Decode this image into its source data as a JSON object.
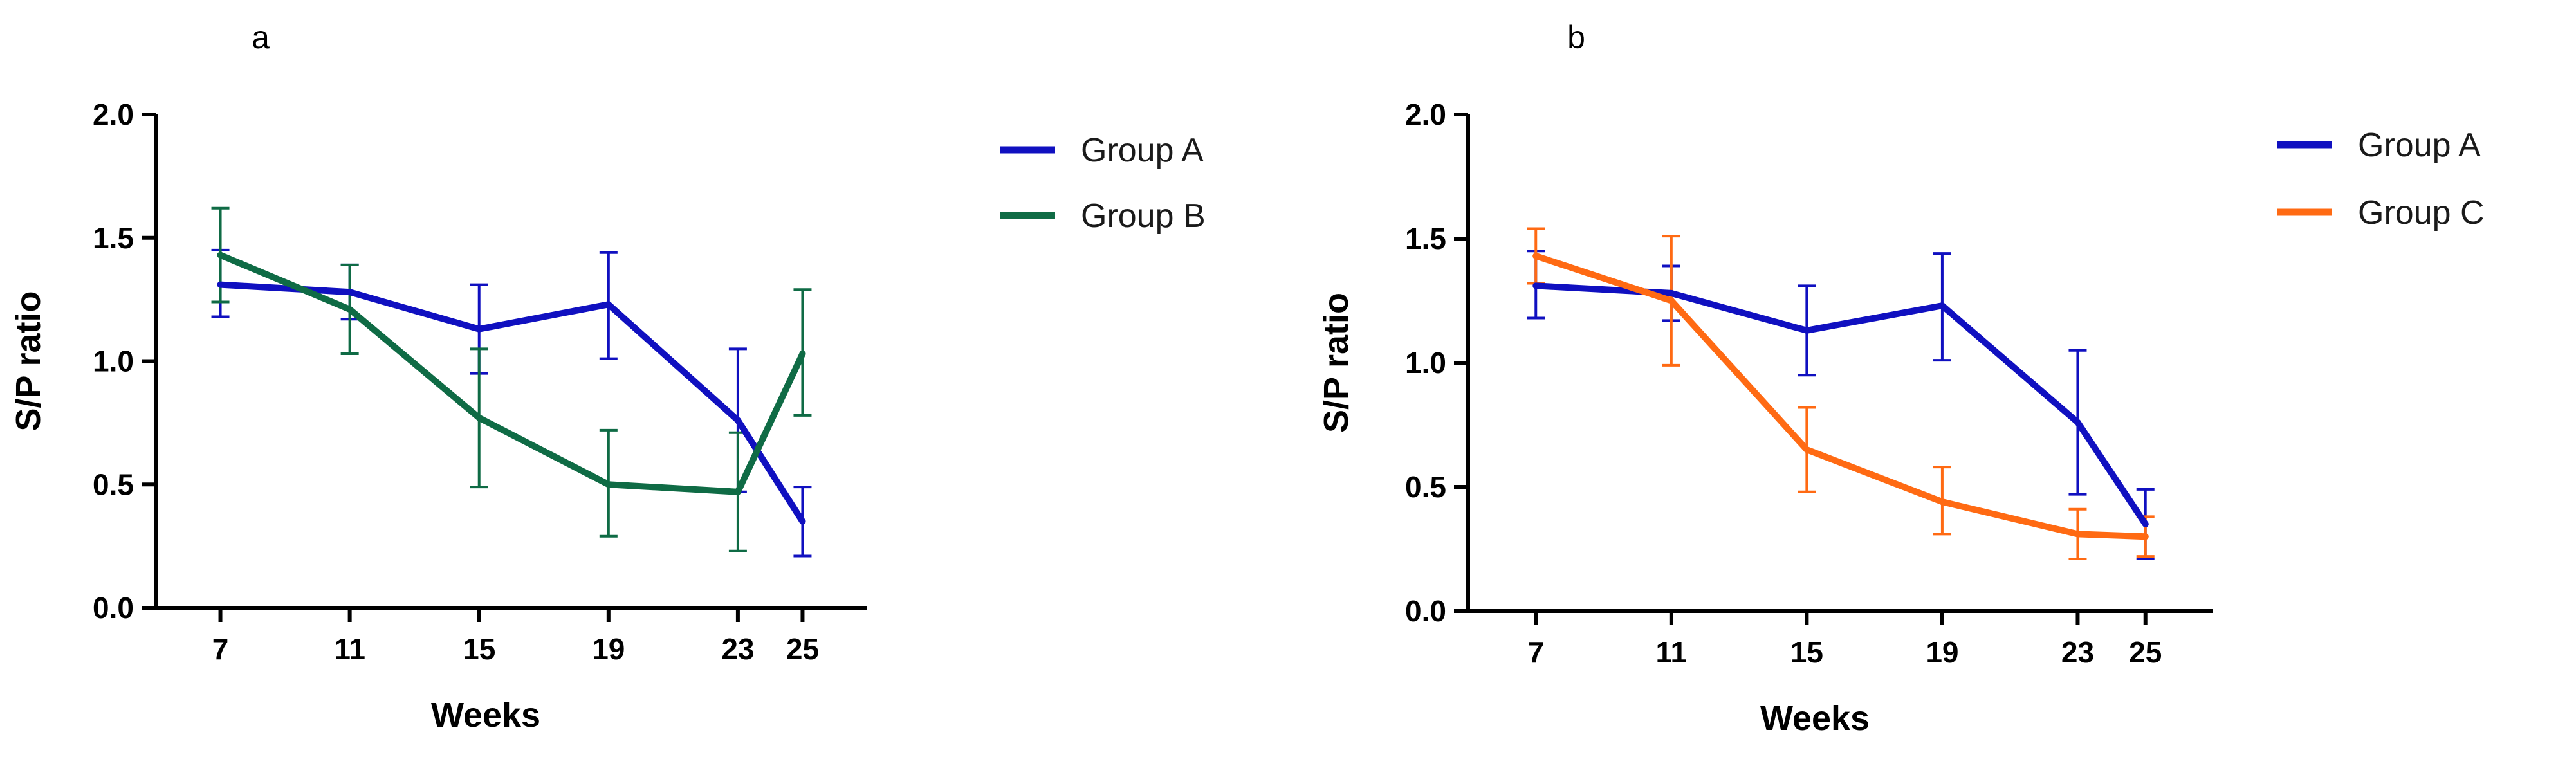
{
  "chart_data": [
    {
      "type": "line",
      "panel_label": "a",
      "xlabel": "Weeks",
      "ylabel": "S/P ratio",
      "x": [
        7,
        11,
        15,
        19,
        23,
        25
      ],
      "xticks": [
        "7",
        "11",
        "15",
        "19",
        "23",
        "25"
      ],
      "xlim": [
        5,
        27
      ],
      "ylim": [
        0,
        2
      ],
      "yticks": [
        "0.0",
        "0.5",
        "1.0",
        "1.5",
        "2.0"
      ],
      "ytick_values": [
        0,
        0.5,
        1,
        1.5,
        2
      ],
      "grid": false,
      "legend_position": "right",
      "series": [
        {
          "name": "Group A",
          "color": "#1010c0",
          "values": [
            1.31,
            1.28,
            1.13,
            1.23,
            0.76,
            0.35
          ],
          "err_low": [
            1.18,
            1.17,
            0.95,
            1.01,
            0.47,
            0.21
          ],
          "err_high": [
            1.45,
            1.39,
            1.31,
            1.44,
            1.05,
            0.49
          ]
        },
        {
          "name": "Group B",
          "color": "#0f6b45",
          "values": [
            1.43,
            1.21,
            0.77,
            0.5,
            0.47,
            1.03
          ],
          "err_low": [
            1.24,
            1.03,
            0.49,
            0.29,
            0.23,
            0.78
          ],
          "err_high": [
            1.62,
            1.39,
            1.05,
            0.72,
            0.71,
            1.29
          ]
        }
      ]
    },
    {
      "type": "line",
      "panel_label": "b",
      "xlabel": "Weeks",
      "ylabel": "S/P ratio",
      "x": [
        7,
        11,
        15,
        19,
        23,
        25
      ],
      "xticks": [
        "7",
        "11",
        "15",
        "19",
        "23",
        "25"
      ],
      "xlim": [
        5,
        27
      ],
      "ylim": [
        0,
        2
      ],
      "yticks": [
        "0.0",
        "0.5",
        "1.0",
        "1.5",
        "2.0"
      ],
      "ytick_values": [
        0,
        0.5,
        1,
        1.5,
        2
      ],
      "grid": false,
      "legend_position": "right",
      "series": [
        {
          "name": "Group A",
          "color": "#1010c0",
          "values": [
            1.31,
            1.28,
            1.13,
            1.23,
            0.76,
            0.35
          ],
          "err_low": [
            1.18,
            1.17,
            0.95,
            1.01,
            0.47,
            0.21
          ],
          "err_high": [
            1.45,
            1.39,
            1.31,
            1.44,
            1.05,
            0.49
          ]
        },
        {
          "name": "Group C",
          "color": "#ff6a13",
          "values": [
            1.43,
            1.25,
            0.65,
            0.44,
            0.31,
            0.3
          ],
          "err_low": [
            1.32,
            0.99,
            0.48,
            0.31,
            0.21,
            0.22
          ],
          "err_high": [
            1.54,
            1.51,
            0.82,
            0.58,
            0.41,
            0.38
          ]
        }
      ]
    }
  ]
}
